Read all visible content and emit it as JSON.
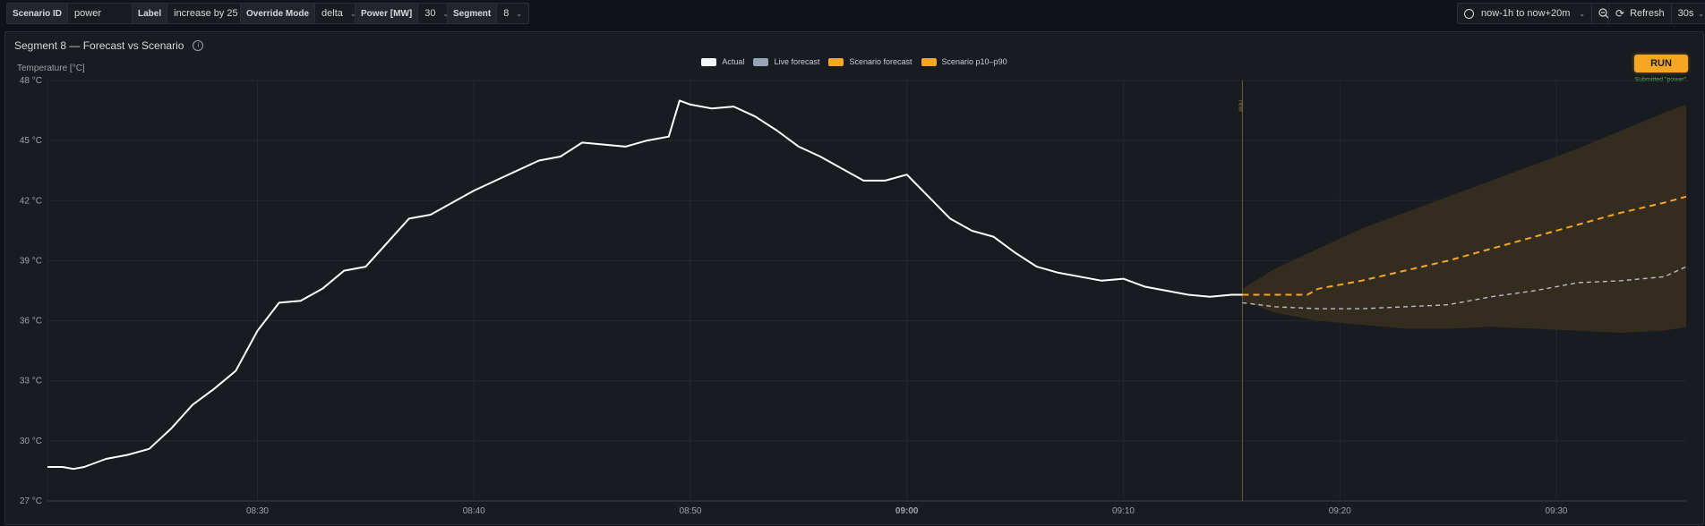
{
  "toolbar": {
    "controls": [
      {
        "label": "Scenario ID",
        "value": "power",
        "type": "text"
      },
      {
        "label": "Label",
        "value": "increase by 25",
        "type": "text"
      },
      {
        "label": "Override Mode",
        "value": "delta",
        "type": "select"
      },
      {
        "label": "Power [MW]",
        "value": "30",
        "type": "select"
      },
      {
        "label": "Segment",
        "value": "8",
        "type": "select"
      }
    ],
    "time_range": "now-1h to now+20m",
    "refresh_label": "Refresh",
    "refresh_interval": "30s"
  },
  "panel": {
    "title": "Segment 8 — Forecast vs Scenario",
    "run_label": "RUN",
    "status": "Submitted \"power\".",
    "now_label": "now"
  },
  "colors": {
    "actual": "#ffffff",
    "live_forecast": "#9aa3b5",
    "scenario_forecast": "#f5a623",
    "band": "#3a3020"
  },
  "chart_data": {
    "type": "line",
    "title": "Segment 8 — Forecast vs Scenario",
    "xlabel": "",
    "ylabel": "Temperature [°C]",
    "ylim": [
      27,
      48
    ],
    "yticks": [
      "27 °C",
      "30 °C",
      "33 °C",
      "36 °C",
      "39 °C",
      "42 °C",
      "45 °C",
      "48 °C"
    ],
    "yticks_values": [
      27,
      30,
      33,
      36,
      39,
      42,
      45,
      48
    ],
    "xlim_minutes": [
      500.3,
      576.0
    ],
    "xticks": [
      "08:30",
      "08:40",
      "08:50",
      "09:00",
      "09:10",
      "09:20",
      "09:30"
    ],
    "xticks_minutes": [
      510,
      520,
      530,
      540,
      550,
      560,
      570
    ],
    "now_minute": 555.5,
    "grid": true,
    "legend_position": "top-center",
    "legend": [
      "Actual",
      "Live forecast",
      "Scenario forecast",
      "Scenario p10–p90"
    ],
    "series": [
      {
        "name": "Actual",
        "x": [
          500.3,
          501,
          501.5,
          502,
          503,
          504,
          505,
          506,
          507,
          508,
          509,
          510,
          511,
          512,
          513,
          514,
          515,
          516,
          517,
          518,
          519,
          520,
          521,
          522,
          523,
          524,
          525,
          526,
          527,
          528,
          529,
          529.5,
          530,
          531,
          532,
          533,
          534,
          535,
          536,
          537,
          538,
          539,
          540,
          541,
          542,
          543,
          544,
          545,
          546,
          547,
          548,
          549,
          550,
          551,
          552,
          553,
          554,
          555,
          555.5
        ],
        "values": [
          28.7,
          28.7,
          28.6,
          28.7,
          29.1,
          29.3,
          29.6,
          30.6,
          31.8,
          32.6,
          33.5,
          35.5,
          36.9,
          37.0,
          37.6,
          38.5,
          38.7,
          39.9,
          41.1,
          41.3,
          41.9,
          42.5,
          43.0,
          43.5,
          44.0,
          44.2,
          44.9,
          44.8,
          44.7,
          45.0,
          45.2,
          47.0,
          46.8,
          46.6,
          46.7,
          46.2,
          45.5,
          44.7,
          44.2,
          43.6,
          43.0,
          43.0,
          43.3,
          42.2,
          41.1,
          40.5,
          40.2,
          39.4,
          38.7,
          38.4,
          38.2,
          38.0,
          38.1,
          37.7,
          37.5,
          37.3,
          37.2,
          37.3,
          37.3
        ]
      },
      {
        "name": "Live forecast",
        "x": [
          555.5,
          557,
          559,
          561,
          563,
          565,
          567,
          569,
          571,
          573,
          575,
          576
        ],
        "values": [
          36.9,
          36.7,
          36.6,
          36.6,
          36.7,
          36.8,
          37.2,
          37.5,
          37.9,
          38.0,
          38.2,
          38.7
        ]
      },
      {
        "name": "Scenario forecast",
        "x": [
          555.5,
          557,
          558.5,
          559,
          561,
          563,
          565,
          567,
          569,
          571,
          573,
          575,
          576
        ],
        "values": [
          37.3,
          37.3,
          37.3,
          37.6,
          38.0,
          38.5,
          39.0,
          39.6,
          40.2,
          40.8,
          41.4,
          41.9,
          42.2
        ]
      },
      {
        "name": "Scenario p10–p90",
        "x": [
          555.5,
          557,
          559,
          561,
          563,
          565,
          567,
          569,
          571,
          573,
          575,
          576
        ],
        "low": [
          37.0,
          36.4,
          36.0,
          35.8,
          35.6,
          35.6,
          35.7,
          35.6,
          35.5,
          35.4,
          35.5,
          35.7
        ],
        "high": [
          37.6,
          38.6,
          39.6,
          40.6,
          41.4,
          42.2,
          43.0,
          43.8,
          44.6,
          45.5,
          46.4,
          46.8
        ]
      }
    ]
  }
}
